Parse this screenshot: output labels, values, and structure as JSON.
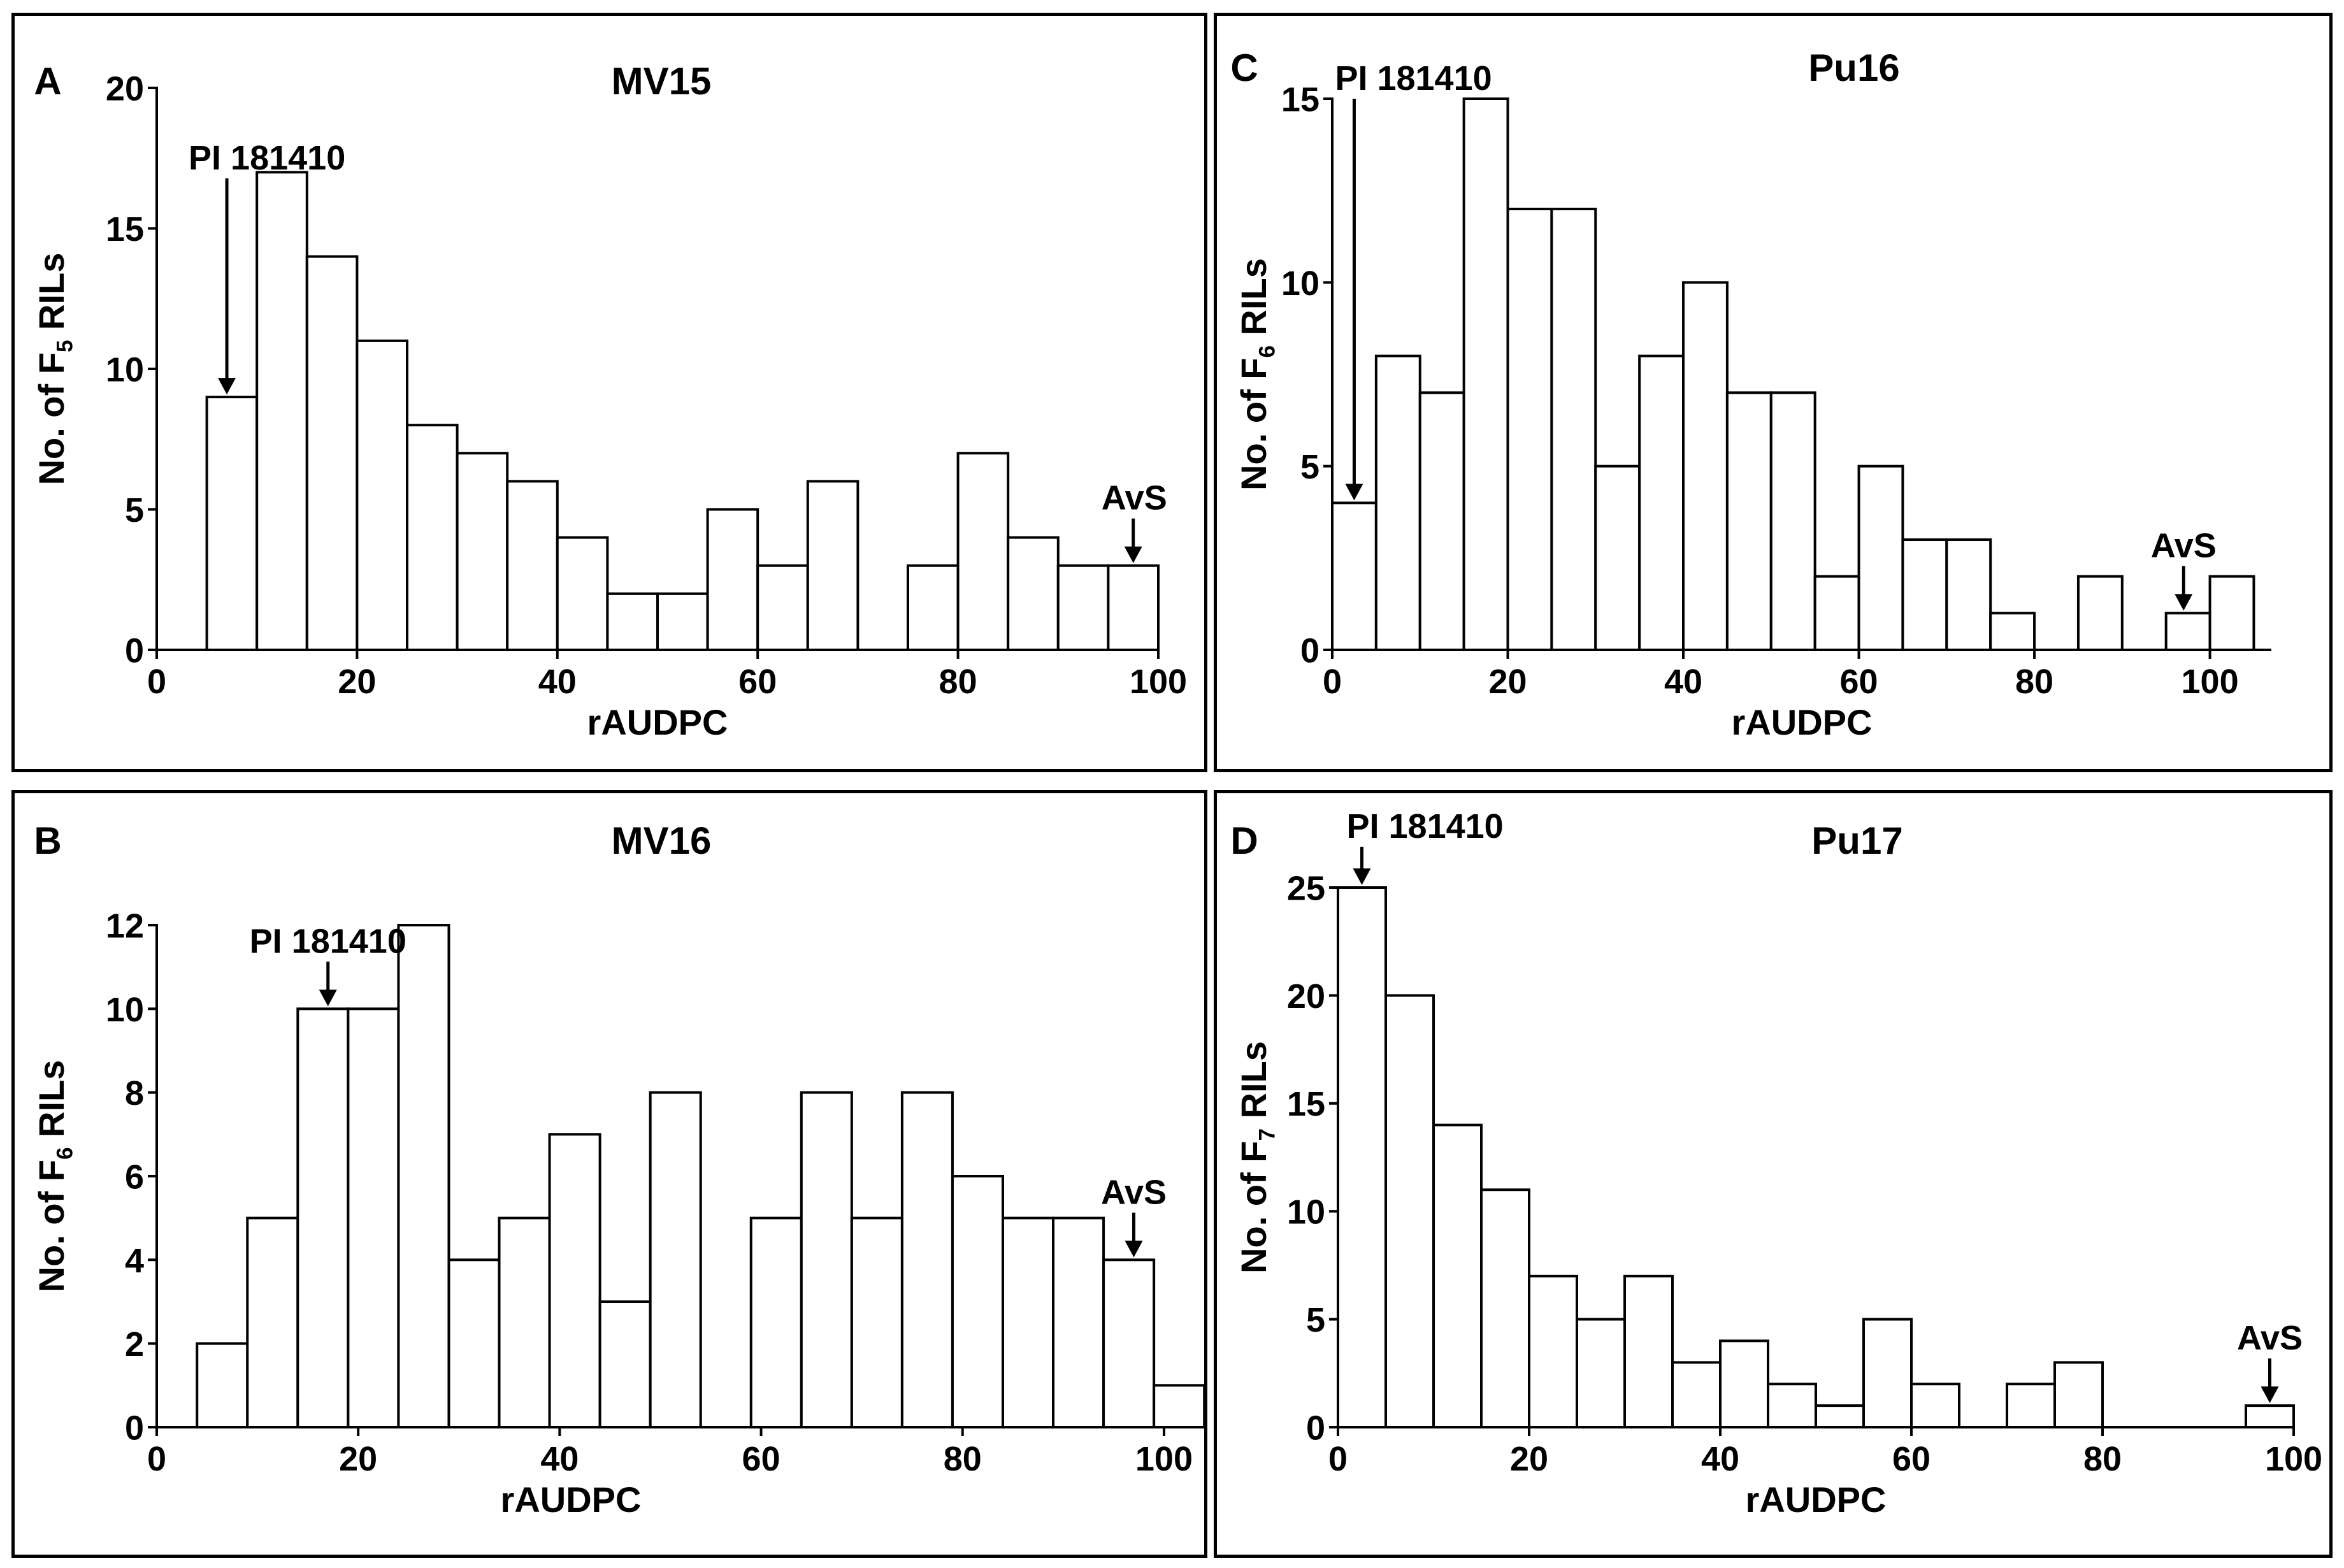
{
  "chart_data": [
    {
      "panel_letter": "A",
      "title": "MV15",
      "type": "bar",
      "xlabel": "rAUDPC",
      "ylabel_main": "No. of F",
      "ylabel_sub": "5",
      "ylabel_end": " RILs",
      "xlim": [
        0,
        100
      ],
      "ylim": [
        0,
        20
      ],
      "xticks": [
        0,
        20,
        40,
        60,
        80,
        100
      ],
      "yticks": [
        0,
        5,
        10,
        15,
        20
      ],
      "bin_width": 5,
      "bin_starts": [
        5,
        10,
        15,
        20,
        25,
        30,
        35,
        40,
        45,
        50,
        55,
        60,
        65,
        75,
        80,
        85,
        90,
        95
      ],
      "values": [
        9,
        17,
        14,
        11,
        8,
        7,
        6,
        4,
        2,
        2,
        5,
        3,
        6,
        3,
        7,
        4,
        3,
        3
      ],
      "annotations": [
        {
          "text": "PI 181410",
          "x": 7,
          "y": 9
        },
        {
          "text": "AvS",
          "x": 97.5,
          "y": 3
        }
      ]
    },
    {
      "panel_letter": "B",
      "title": "MV16",
      "type": "bar",
      "xlabel": "rAUDPC",
      "ylabel_main": "No. of F",
      "ylabel_sub": "6",
      "ylabel_end": " RILs",
      "xlim": [
        0,
        105
      ],
      "ylim": [
        0,
        12
      ],
      "xticks": [
        0,
        20,
        40,
        60,
        80,
        100
      ],
      "yticks": [
        0,
        2,
        4,
        6,
        8,
        10,
        12
      ],
      "bin_width": 5,
      "bin_starts": [
        4,
        9,
        14,
        19,
        24,
        29,
        34,
        39,
        44,
        49,
        59,
        64,
        69,
        74,
        79,
        84,
        89,
        94,
        99
      ],
      "values": [
        2,
        5,
        10,
        10,
        12,
        4,
        5,
        7,
        3,
        8,
        5,
        8,
        5,
        8,
        6,
        5,
        5,
        4,
        1
      ],
      "annotations": [
        {
          "text": "PI 181410",
          "x": 17,
          "y": 10
        },
        {
          "text": "AvS",
          "x": 97,
          "y": 4
        }
      ]
    },
    {
      "panel_letter": "C",
      "title": "Pu16",
      "type": "bar",
      "xlabel": "rAUDPC",
      "ylabel_main": "No. of F",
      "ylabel_sub": "6",
      "ylabel_end": " RILs",
      "xlim": [
        0,
        107
      ],
      "ylim": [
        0,
        15
      ],
      "xticks": [
        0,
        20,
        40,
        60,
        80,
        100
      ],
      "yticks": [
        0,
        5,
        10,
        15
      ],
      "bin_width": 5,
      "bin_starts": [
        0,
        5,
        10,
        15,
        20,
        25,
        30,
        35,
        40,
        45,
        50,
        55,
        60,
        65,
        70,
        75,
        85,
        95,
        100
      ],
      "values": [
        4,
        8,
        7,
        15,
        12,
        12,
        5,
        8,
        10,
        7,
        7,
        2,
        5,
        3,
        3,
        1,
        2,
        1,
        2
      ],
      "annotations": [
        {
          "text": "PI 181410",
          "x": 2.5,
          "y": 4
        },
        {
          "text": "AvS",
          "x": 97,
          "y": 1
        }
      ]
    },
    {
      "panel_letter": "D",
      "title": "Pu17",
      "type": "bar",
      "xlabel": "rAUDPC",
      "ylabel_main": "No. of F",
      "ylabel_sub": "7",
      "ylabel_end": " RILs",
      "xlim": [
        0,
        100
      ],
      "ylim": [
        0,
        25
      ],
      "xticks": [
        0,
        20,
        40,
        60,
        80,
        100
      ],
      "yticks": [
        0,
        5,
        10,
        15,
        20,
        25
      ],
      "tick_labels": [
        "0",
        "5",
        "10",
        "15",
        "20",
        "25"
      ],
      "bin_width": 5,
      "bin_starts": [
        0,
        5,
        10,
        15,
        20,
        25,
        30,
        35,
        40,
        45,
        50,
        55,
        60,
        70,
        75,
        95
      ],
      "values": [
        25,
        20,
        14,
        11,
        7,
        5,
        7,
        3,
        4,
        2,
        1,
        5,
        2,
        2,
        3,
        1
      ],
      "annotations": [
        {
          "text": "PI 181410",
          "x": 2.5,
          "y": 25
        },
        {
          "text": "AvS",
          "x": 97.5,
          "y": 1
        }
      ]
    }
  ]
}
